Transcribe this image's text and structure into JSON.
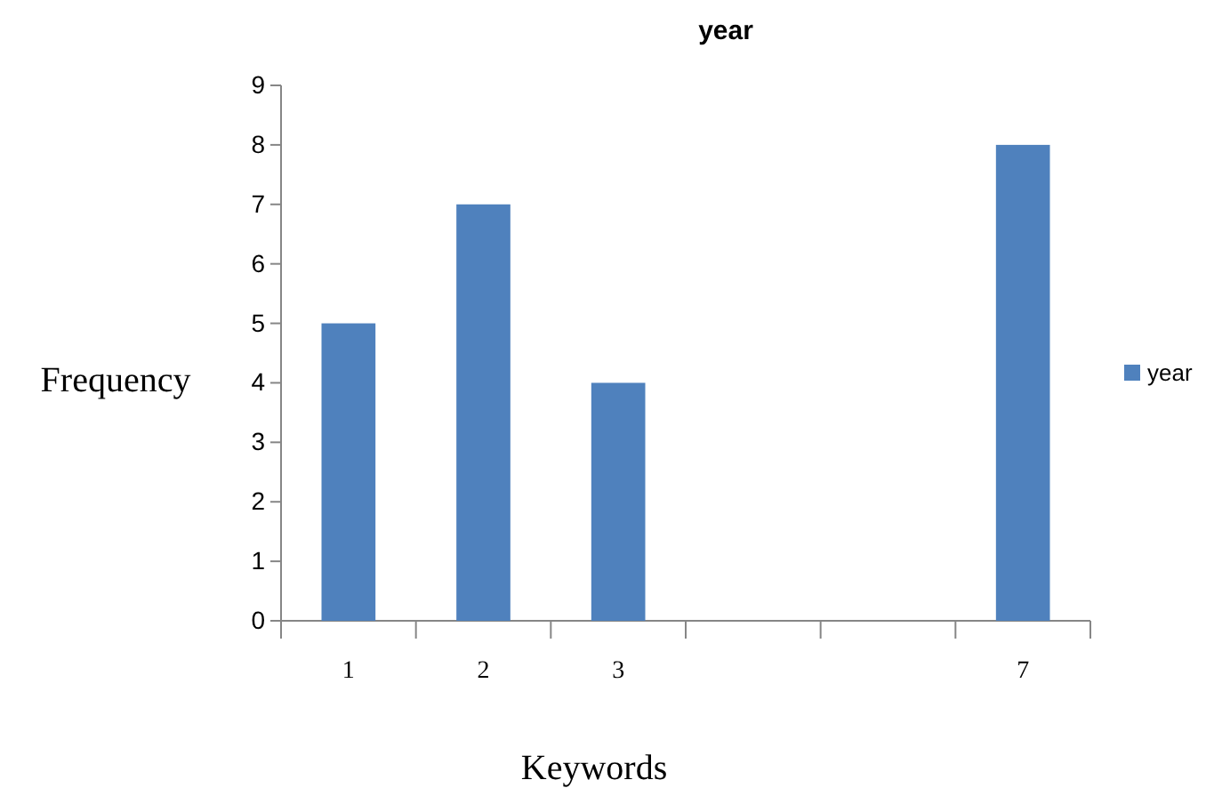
{
  "chart_data": {
    "type": "bar",
    "title": "year",
    "xlabel": "Keywords",
    "ylabel": "Frequency",
    "categories": [
      "1",
      "2",
      "3",
      null,
      null,
      "7"
    ],
    "series": [
      {
        "name": "year",
        "color": "#4f81bd",
        "values": [
          5,
          7,
          4,
          null,
          null,
          8
        ]
      }
    ],
    "ylim": [
      0,
      9
    ],
    "yticks": [
      0,
      1,
      2,
      3,
      4,
      5,
      6,
      7,
      8,
      9
    ],
    "grid": false,
    "legend": "right"
  }
}
